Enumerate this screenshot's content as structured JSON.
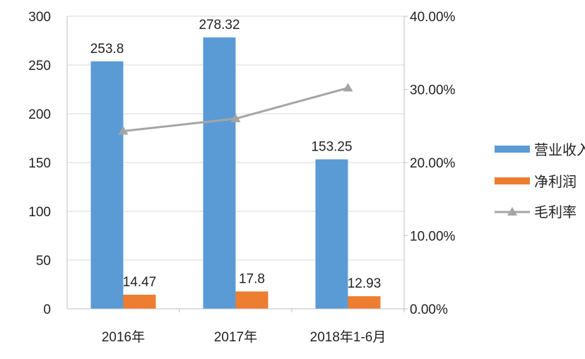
{
  "chart_data": {
    "type": "bar",
    "categories": [
      "2016年",
      "2017年",
      "2018年1-6月"
    ],
    "series": [
      {
        "name": "营业收入",
        "kind": "bar",
        "axis": "left",
        "values": [
          253.8,
          278.32,
          153.25
        ],
        "labels": [
          "253.8",
          "278.32",
          "153.25"
        ],
        "color": "#5b9bd5"
      },
      {
        "name": "净利润",
        "kind": "bar",
        "axis": "left",
        "values": [
          14.47,
          17.8,
          12.93
        ],
        "labels": [
          "14.47",
          "17.8",
          "12.93"
        ],
        "color": "#ed7d31"
      },
      {
        "name": "毛利率",
        "kind": "line",
        "axis": "right",
        "values": [
          24.3,
          26.0,
          30.2
        ],
        "unit": "%",
        "color": "#a5a5a5",
        "marker": "triangle"
      }
    ],
    "y_left": {
      "ylim": [
        0,
        300
      ],
      "ticks": [
        0,
        50,
        100,
        150,
        200,
        250,
        300
      ],
      "tick_labels": [
        "0",
        "50",
        "100",
        "150",
        "200",
        "250",
        "300"
      ]
    },
    "y_right": {
      "ylim": [
        0,
        40
      ],
      "ticks": [
        0,
        10,
        20,
        30,
        40
      ],
      "tick_labels": [
        "0.00%",
        "10.00%",
        "20.00%",
        "30.00%",
        "40.00%"
      ]
    },
    "grid": true,
    "legend": {
      "position": "right",
      "entries": [
        "营业收入",
        "净利润",
        "毛利率"
      ]
    }
  }
}
